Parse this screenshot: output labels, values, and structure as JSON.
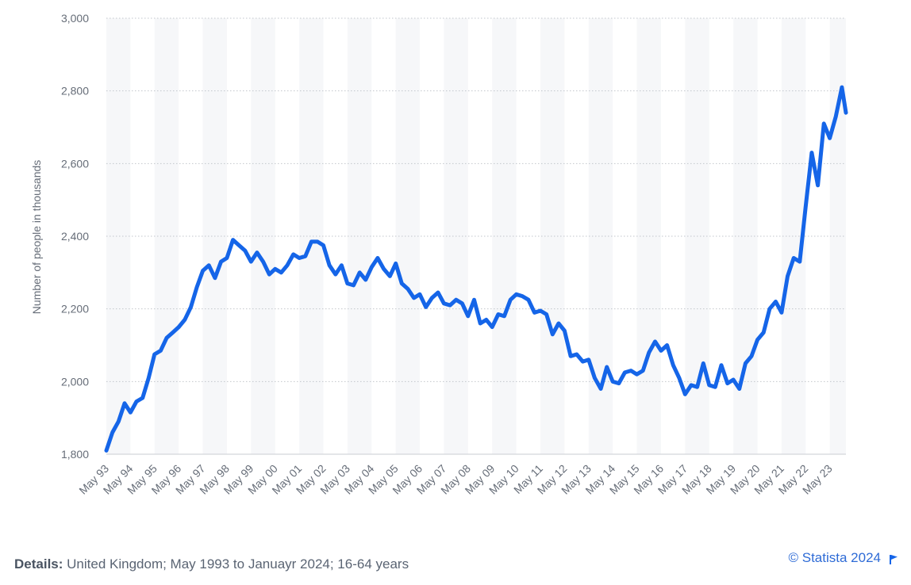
{
  "chart_data": {
    "type": "line",
    "ylabel": "Number of people in thousands",
    "xlabel": "",
    "ylim": [
      1800,
      3000
    ],
    "yticks": [
      1800,
      2000,
      2200,
      2400,
      2600,
      2800,
      3000
    ],
    "ytick_labels": [
      "1,800",
      "2,000",
      "2,200",
      "2,400",
      "2,600",
      "2,800",
      "3,000"
    ],
    "xtick_labels": [
      "May 93",
      "May 94",
      "May 95",
      "May 96",
      "May 97",
      "May 98",
      "May 99",
      "May 00",
      "May 01",
      "May 02",
      "May 03",
      "May 04",
      "May 05",
      "May 06",
      "May 07",
      "May 08",
      "May 09",
      "May 10",
      "May 11",
      "May 12",
      "May 13",
      "May 14",
      "May 15",
      "May 16",
      "May 17",
      "May 18",
      "May 19",
      "May 20",
      "May 21",
      "May 22",
      "May 23"
    ],
    "grid": true,
    "line_color": "#1565e8",
    "series": [
      {
        "points": [
          [
            "1993-05",
            1810
          ],
          [
            "1993-08",
            1860
          ],
          [
            "1993-11",
            1890
          ],
          [
            "1994-02",
            1940
          ],
          [
            "1994-05",
            1915
          ],
          [
            "1994-08",
            1945
          ],
          [
            "1994-11",
            1955
          ],
          [
            "1995-02",
            2010
          ],
          [
            "1995-05",
            2075
          ],
          [
            "1995-08",
            2085
          ],
          [
            "1995-11",
            2120
          ],
          [
            "1996-02",
            2135
          ],
          [
            "1996-05",
            2150
          ],
          [
            "1996-08",
            2170
          ],
          [
            "1996-11",
            2205
          ],
          [
            "1997-02",
            2260
          ],
          [
            "1997-05",
            2305
          ],
          [
            "1997-08",
            2320
          ],
          [
            "1997-11",
            2285
          ],
          [
            "1998-02",
            2330
          ],
          [
            "1998-05",
            2340
          ],
          [
            "1998-08",
            2390
          ],
          [
            "1998-11",
            2375
          ],
          [
            "1999-02",
            2360
          ],
          [
            "1999-05",
            2330
          ],
          [
            "1999-08",
            2355
          ],
          [
            "1999-11",
            2330
          ],
          [
            "2000-02",
            2295
          ],
          [
            "2000-05",
            2310
          ],
          [
            "2000-08",
            2300
          ],
          [
            "2000-11",
            2320
          ],
          [
            "2001-02",
            2350
          ],
          [
            "2001-05",
            2340
          ],
          [
            "2001-08",
            2345
          ],
          [
            "2001-11",
            2385
          ],
          [
            "2002-02",
            2385
          ],
          [
            "2002-05",
            2375
          ],
          [
            "2002-08",
            2320
          ],
          [
            "2002-11",
            2295
          ],
          [
            "2003-02",
            2320
          ],
          [
            "2003-05",
            2270
          ],
          [
            "2003-08",
            2265
          ],
          [
            "2003-11",
            2300
          ],
          [
            "2004-02",
            2280
          ],
          [
            "2004-05",
            2315
          ],
          [
            "2004-08",
            2340
          ],
          [
            "2004-11",
            2310
          ],
          [
            "2005-02",
            2290
          ],
          [
            "2005-05",
            2325
          ],
          [
            "2005-08",
            2270
          ],
          [
            "2005-11",
            2255
          ],
          [
            "2006-02",
            2230
          ],
          [
            "2006-05",
            2240
          ],
          [
            "2006-08",
            2205
          ],
          [
            "2006-11",
            2230
          ],
          [
            "2007-02",
            2245
          ],
          [
            "2007-05",
            2215
          ],
          [
            "2007-08",
            2210
          ],
          [
            "2007-11",
            2225
          ],
          [
            "2008-02",
            2215
          ],
          [
            "2008-05",
            2180
          ],
          [
            "2008-08",
            2225
          ],
          [
            "2008-11",
            2160
          ],
          [
            "2009-02",
            2170
          ],
          [
            "2009-05",
            2150
          ],
          [
            "2009-08",
            2185
          ],
          [
            "2009-11",
            2180
          ],
          [
            "2010-02",
            2225
          ],
          [
            "2010-05",
            2240
          ],
          [
            "2010-08",
            2235
          ],
          [
            "2010-11",
            2225
          ],
          [
            "2011-02",
            2190
          ],
          [
            "2011-05",
            2195
          ],
          [
            "2011-08",
            2185
          ],
          [
            "2011-11",
            2130
          ],
          [
            "2012-02",
            2160
          ],
          [
            "2012-05",
            2140
          ],
          [
            "2012-08",
            2070
          ],
          [
            "2012-11",
            2075
          ],
          [
            "2013-02",
            2055
          ],
          [
            "2013-05",
            2060
          ],
          [
            "2013-08",
            2010
          ],
          [
            "2013-11",
            1980
          ],
          [
            "2014-02",
            2040
          ],
          [
            "2014-05",
            2000
          ],
          [
            "2014-08",
            1995
          ],
          [
            "2014-11",
            2025
          ],
          [
            "2015-02",
            2030
          ],
          [
            "2015-05",
            2020
          ],
          [
            "2015-08",
            2030
          ],
          [
            "2015-11",
            2080
          ],
          [
            "2016-02",
            2110
          ],
          [
            "2016-05",
            2085
          ],
          [
            "2016-08",
            2100
          ],
          [
            "2016-11",
            2045
          ],
          [
            "2017-02",
            2010
          ],
          [
            "2017-05",
            1965
          ],
          [
            "2017-08",
            1990
          ],
          [
            "2017-11",
            1985
          ],
          [
            "2018-02",
            2050
          ],
          [
            "2018-05",
            1990
          ],
          [
            "2018-08",
            1985
          ],
          [
            "2018-11",
            2045
          ],
          [
            "2019-02",
            1995
          ],
          [
            "2019-05",
            2005
          ],
          [
            "2019-08",
            1980
          ],
          [
            "2019-11",
            2050
          ],
          [
            "2020-02",
            2070
          ],
          [
            "2020-05",
            2115
          ],
          [
            "2020-08",
            2135
          ],
          [
            "2020-11",
            2200
          ],
          [
            "2021-02",
            2220
          ],
          [
            "2021-05",
            2190
          ],
          [
            "2021-08",
            2290
          ],
          [
            "2021-11",
            2340
          ],
          [
            "2022-02",
            2330
          ],
          [
            "2022-05",
            2480
          ],
          [
            "2022-08",
            2630
          ],
          [
            "2022-11",
            2540
          ],
          [
            "2023-02",
            2710
          ],
          [
            "2023-05",
            2670
          ],
          [
            "2023-08",
            2730
          ],
          [
            "2023-11",
            2810
          ],
          [
            "2024-01",
            2740
          ]
        ]
      }
    ]
  },
  "footer": {
    "details_label": "Details:",
    "details_text": " United Kingdom; May 1993 to Januayr 2024; 16-64 years",
    "credit": "© Statista 2024"
  },
  "icons": {
    "flag": "flag-icon"
  }
}
